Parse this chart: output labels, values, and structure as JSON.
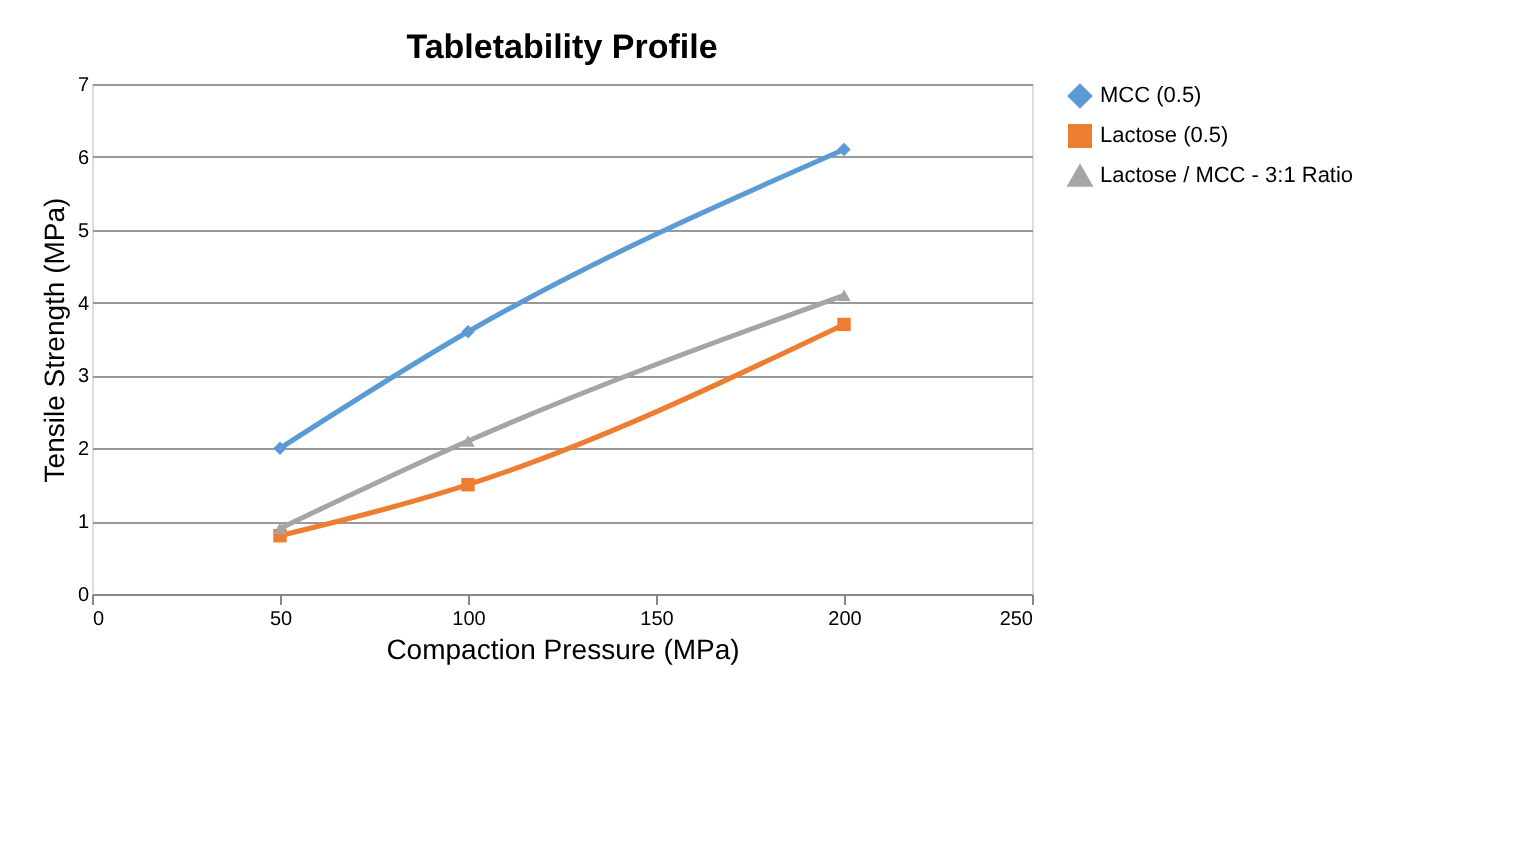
{
  "chart_data": {
    "type": "line",
    "title": "Tabletability Profile",
    "xlabel": "Compaction Pressure (MPa)",
    "ylabel": "Tensile Strength (MPa)",
    "x": [
      50,
      100,
      200
    ],
    "series": [
      {
        "name": "MCC (0.5)",
        "color": "#5b9bd5",
        "marker": "diamond",
        "values": [
          2.0,
          3.6,
          6.1
        ]
      },
      {
        "name": "Lactose (0.5)",
        "color": "#ed7d31",
        "marker": "square",
        "values": [
          0.8,
          1.5,
          3.7
        ]
      },
      {
        "name": "Lactose / MCC - 3:1 Ratio",
        "color": "#a5a5a5",
        "marker": "triangle",
        "values": [
          0.9,
          2.1,
          4.1
        ]
      }
    ],
    "xlim": [
      0,
      250
    ],
    "xticks": [
      0,
      50,
      100,
      150,
      200,
      250
    ],
    "ylim": [
      0,
      7
    ],
    "yticks": [
      0,
      1,
      2,
      3,
      4,
      5,
      6,
      7
    ],
    "grid": "y",
    "legend": "right",
    "line_style": "solid"
  }
}
